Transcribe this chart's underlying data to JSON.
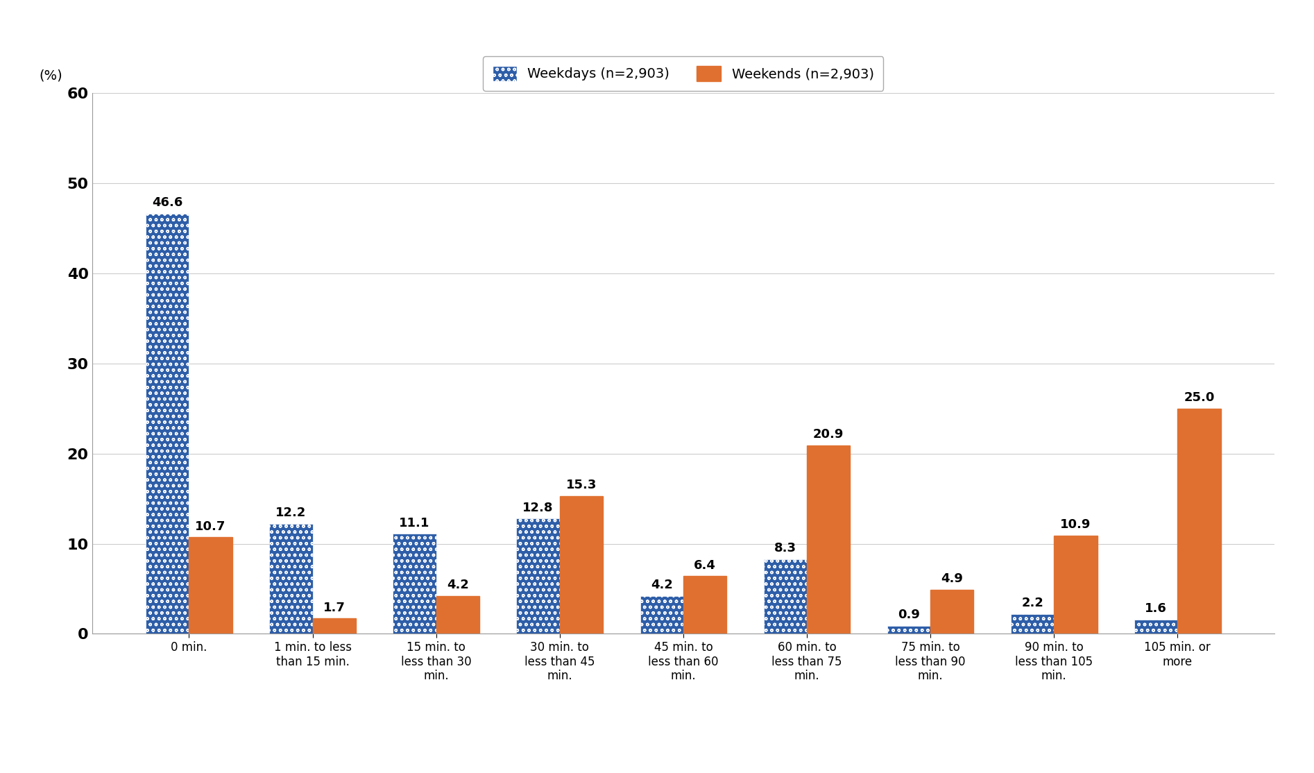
{
  "categories": [
    "0 min.",
    "1 min. to less\nthan 15 min.",
    "15 min. to\nless than 30\nmin.",
    "30 min. to\nless than 45\nmin.",
    "45 min. to\nless than 60\nmin.",
    "60 min. to\nless than 75\nmin.",
    "75 min. to\nless than 90\nmin.",
    "90 min. to\nless than 105\nmin.",
    "105 min. or\nmore"
  ],
  "weekdays": [
    46.6,
    12.2,
    11.1,
    12.8,
    4.2,
    8.3,
    0.9,
    2.2,
    1.6
  ],
  "weekends": [
    10.7,
    1.7,
    4.2,
    15.3,
    6.4,
    20.9,
    4.9,
    10.9,
    25.0
  ],
  "weekday_color": "#2E5EA8",
  "weekend_color": "#E07030",
  "weekday_label": "Weekdays (n=2,903)",
  "weekend_label": "Weekends (n=2,903)",
  "ylabel": "(%)",
  "ylim": [
    0,
    60
  ],
  "yticks": [
    0,
    10,
    20,
    30,
    40,
    50,
    60
  ],
  "bar_width": 0.35,
  "background_color": "#ffffff",
  "grid_color": "#cccccc",
  "label_fontsize": 14,
  "tick_fontsize": 16,
  "legend_fontsize": 14,
  "value_fontsize": 13
}
